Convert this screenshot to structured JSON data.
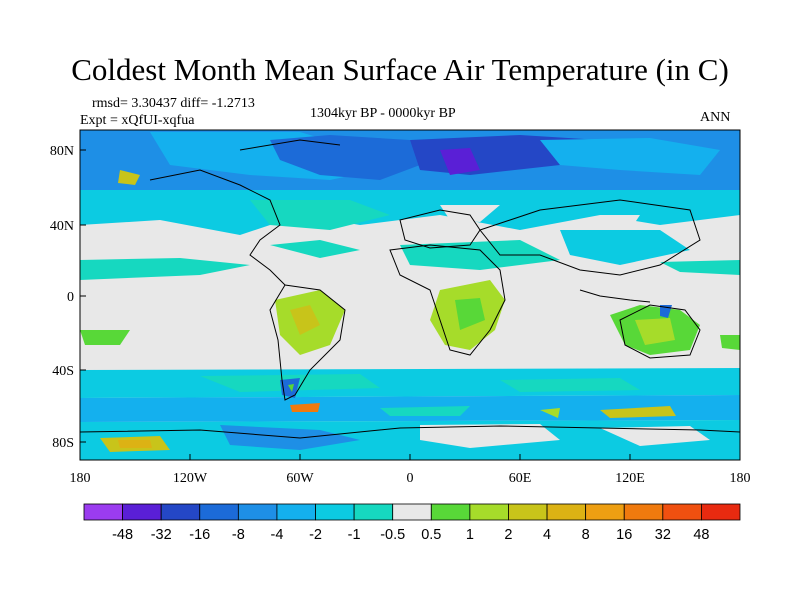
{
  "title": "Coldest Month Mean Surface Air Temperature (in C)",
  "stats": "rmsd= 3.30437 diff= -1.2713",
  "experiment": "Expt = xQfUI-xqfua",
  "period": "1304kyr BP - 0000kyr BP",
  "season": "ANN",
  "lat_ticks": [
    "80N",
    "40N",
    "0",
    "40S",
    "80S"
  ],
  "lon_ticks": [
    "180",
    "120W",
    "60W",
    "0",
    "60E",
    "120E",
    "180"
  ],
  "colorbar": {
    "labels": [
      "-48",
      "-32",
      "-16",
      "-8",
      "-4",
      "-2",
      "-1",
      "-0.5",
      "0.5",
      "1",
      "2",
      "4",
      "8",
      "16",
      "32",
      "48"
    ],
    "colors": [
      "#9b3cf0",
      "#5a1fd6",
      "#2447c6",
      "#1c6bd8",
      "#1e8fe6",
      "#14b0ee",
      "#0ccbe2",
      "#16d8c0",
      "#e8e8e8",
      "#58d838",
      "#a6dc2a",
      "#c8c41a",
      "#dcb214",
      "#ee9f12",
      "#f07a0e",
      "#f05010",
      "#e82a10"
    ]
  }
}
